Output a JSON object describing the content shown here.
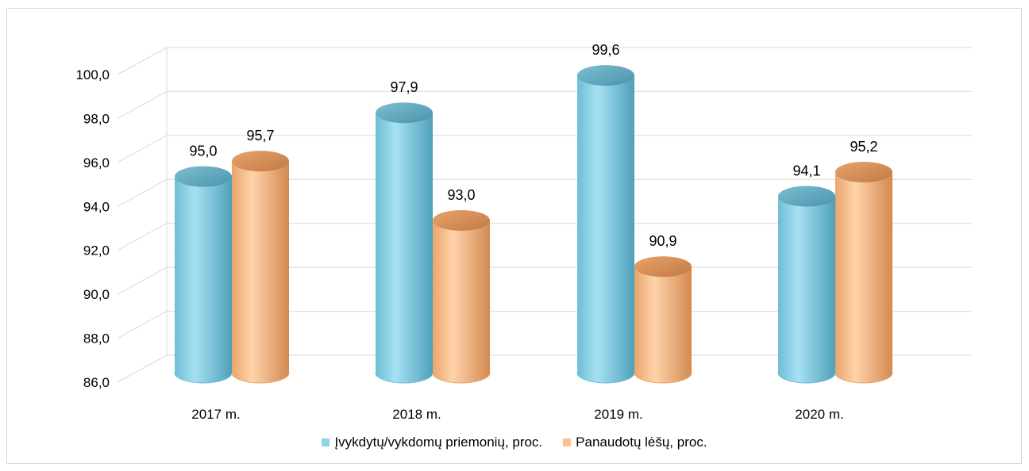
{
  "chart_data": {
    "type": "bar",
    "style": "3d-cylinder",
    "title": "",
    "xlabel": "",
    "ylabel": "",
    "categories": [
      "2017 m.",
      "2018 m.",
      "2019 m.",
      "2020 m."
    ],
    "series": [
      {
        "name": "Įvykdytų/vykdomų priemonių, proc.",
        "values": [
          95.0,
          97.9,
          99.6,
          94.1
        ],
        "labels": [
          "95,0",
          "97,9",
          "99,6",
          "94,1"
        ],
        "color": "#8fd3e8"
      },
      {
        "name": "Panaudotų lėšų, proc.",
        "values": [
          95.7,
          93.0,
          90.9,
          95.2
        ],
        "labels": [
          "95,7",
          "93,0",
          "90,9",
          "95,2"
        ],
        "color": "#fbc08e"
      }
    ],
    "ylim": [
      86,
      100
    ],
    "yticks": [
      "86,0",
      "88,0",
      "90,0",
      "92,0",
      "94,0",
      "96,0",
      "98,0",
      "100,0"
    ],
    "grid": true,
    "legend": "bottom"
  }
}
